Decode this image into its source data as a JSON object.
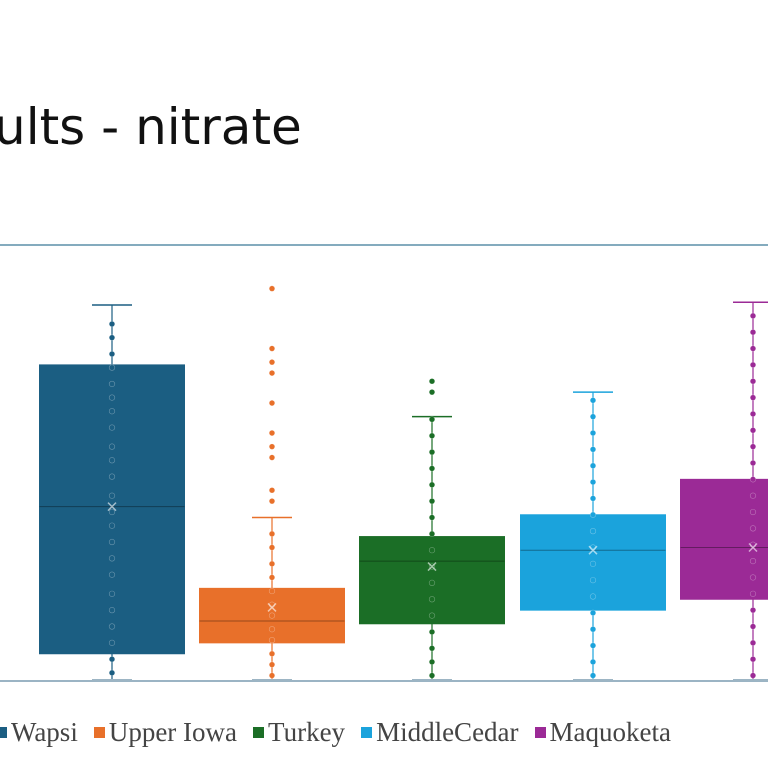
{
  "slide": {
    "title": "ults - nitrate"
  },
  "chart_data": {
    "type": "box",
    "title": "",
    "xlabel": "",
    "ylabel": "",
    "ylim": [
      0,
      16
    ],
    "series": [
      {
        "name": "Wapsi",
        "color": "#1B5E82",
        "min": 0,
        "q1": 1,
        "median": 6.4,
        "q3": 11.6,
        "max": 13.8,
        "mean": 6.4,
        "points": [
          0.3,
          0.8,
          1.4,
          2.0,
          2.6,
          3.2,
          3.9,
          4.5,
          5.1,
          5.7,
          6.2,
          6.8,
          7.5,
          8.1,
          8.6,
          9.3,
          9.9,
          10.4,
          10.9,
          11.5,
          12.0,
          12.6,
          13.1
        ]
      },
      {
        "name": "Upper Iowa",
        "color": "#E8702A",
        "min": 0,
        "q1": 1.4,
        "median": 2.2,
        "q3": 3.4,
        "max": 6,
        "mean": 2.7,
        "points": [
          0.2,
          0.6,
          1.0,
          1.5,
          1.9,
          2.4,
          2.8,
          3.3,
          3.8,
          4.3,
          4.9,
          5.4,
          6.6,
          7.0,
          8.2,
          8.6,
          9.1,
          10.2,
          11.3,
          11.7,
          12.2,
          14.4
        ]
      },
      {
        "name": "Turkey",
        "color": "#1B6E26",
        "min": 0,
        "q1": 2.1,
        "median": 4.4,
        "q3": 5.3,
        "max": 9.7,
        "mean": 4.2,
        "points": [
          0.2,
          0.7,
          1.2,
          1.8,
          2.4,
          3.0,
          3.6,
          4.2,
          4.8,
          5.4,
          6.0,
          6.6,
          7.2,
          7.8,
          8.4,
          9.0,
          9.6,
          10.6,
          11.0
        ]
      },
      {
        "name": "MiddleCedar",
        "color": "#1BA3DC",
        "min": 0,
        "q1": 2.6,
        "median": 4.8,
        "q3": 6.1,
        "max": 10.6,
        "mean": 4.8,
        "points": [
          0.2,
          0.7,
          1.3,
          1.9,
          2.5,
          3.1,
          3.7,
          4.3,
          4.9,
          5.5,
          6.1,
          6.7,
          7.3,
          7.9,
          8.5,
          9.1,
          9.7,
          10.3
        ]
      },
      {
        "name": "Maquoketa",
        "color": "#9B2A96",
        "min": 0,
        "q1": 3,
        "median": 4.9,
        "q3": 7.4,
        "max": 13.9,
        "mean": 4.9,
        "points": [
          0.2,
          0.8,
          1.4,
          2.0,
          2.6,
          3.2,
          3.8,
          4.4,
          5.0,
          5.6,
          6.2,
          6.8,
          7.4,
          8.0,
          8.6,
          9.2,
          9.8,
          10.4,
          11.0,
          11.6,
          12.2,
          12.8,
          13.4
        ]
      }
    ]
  }
}
